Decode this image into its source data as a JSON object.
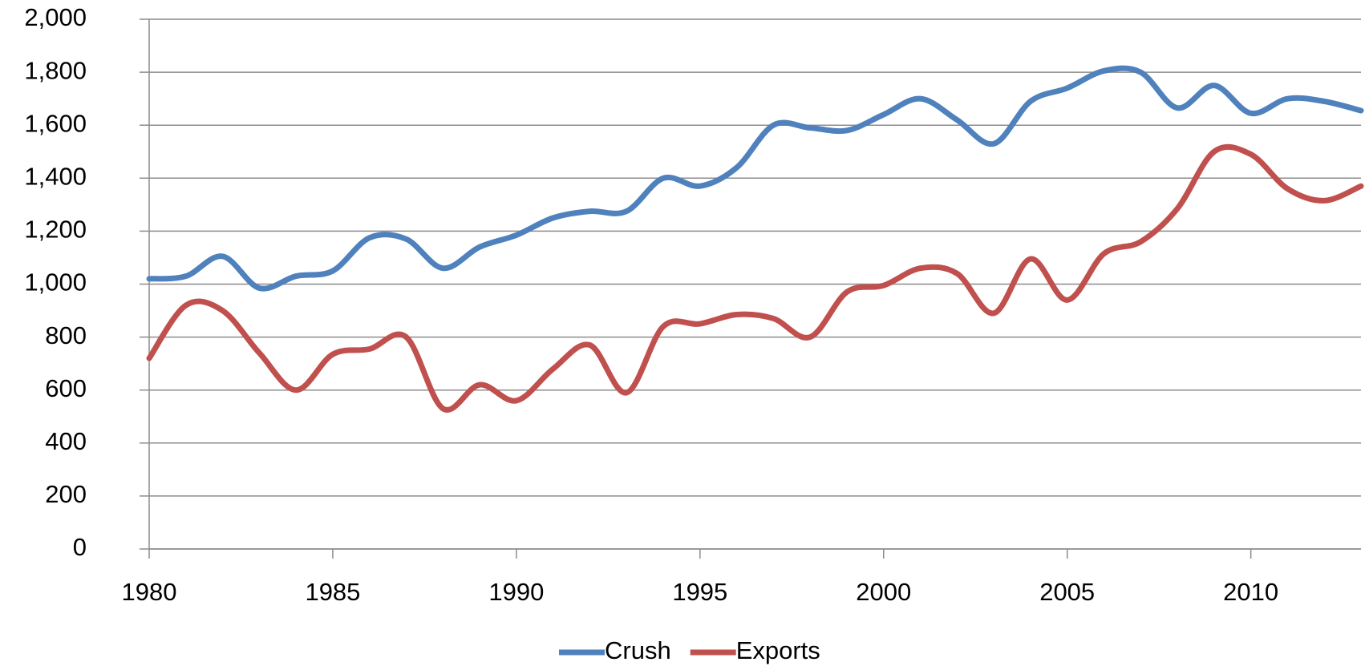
{
  "chart_data": {
    "type": "line",
    "x": [
      1980,
      1981,
      1982,
      1983,
      1984,
      1985,
      1986,
      1987,
      1988,
      1989,
      1990,
      1991,
      1992,
      1993,
      1994,
      1995,
      1996,
      1997,
      1998,
      1999,
      2000,
      2001,
      2002,
      2003,
      2004,
      2005,
      2006,
      2007,
      2008,
      2009,
      2010,
      2011,
      2012,
      2013
    ],
    "series": [
      {
        "name": "Crush",
        "color": "#4f81bd",
        "values": [
          1020,
          1030,
          1105,
          985,
          1030,
          1050,
          1175,
          1170,
          1060,
          1140,
          1185,
          1250,
          1275,
          1275,
          1400,
          1370,
          1440,
          1600,
          1590,
          1580,
          1640,
          1700,
          1620,
          1530,
          1690,
          1740,
          1805,
          1800,
          1665,
          1750,
          1645,
          1700,
          1690,
          1655
        ]
      },
      {
        "name": "Exports",
        "color": "#c0504d",
        "values": [
          720,
          920,
          900,
          740,
          600,
          735,
          755,
          800,
          530,
          620,
          560,
          680,
          770,
          590,
          840,
          850,
          885,
          870,
          800,
          970,
          995,
          1060,
          1040,
          890,
          1095,
          940,
          1115,
          1160,
          1285,
          1500,
          1490,
          1360,
          1315,
          1370
        ]
      }
    ],
    "xlim": [
      1980,
      2013
    ],
    "xticks": [
      1980,
      1985,
      1990,
      1995,
      2000,
      2005,
      2010
    ],
    "ylim": [
      0,
      2000
    ],
    "yticks": [
      0,
      200,
      400,
      600,
      800,
      {
        "value": 1000,
        "label": "1,000"
      },
      {
        "value": 1200,
        "label": "1,200"
      },
      {
        "value": 1400,
        "label": "1,400"
      },
      {
        "value": 1600,
        "label": "1,600"
      },
      {
        "value": 1800,
        "label": "1,800"
      },
      {
        "value": 2000,
        "label": "2,000"
      }
    ],
    "grid": true,
    "legend": "bottom"
  }
}
